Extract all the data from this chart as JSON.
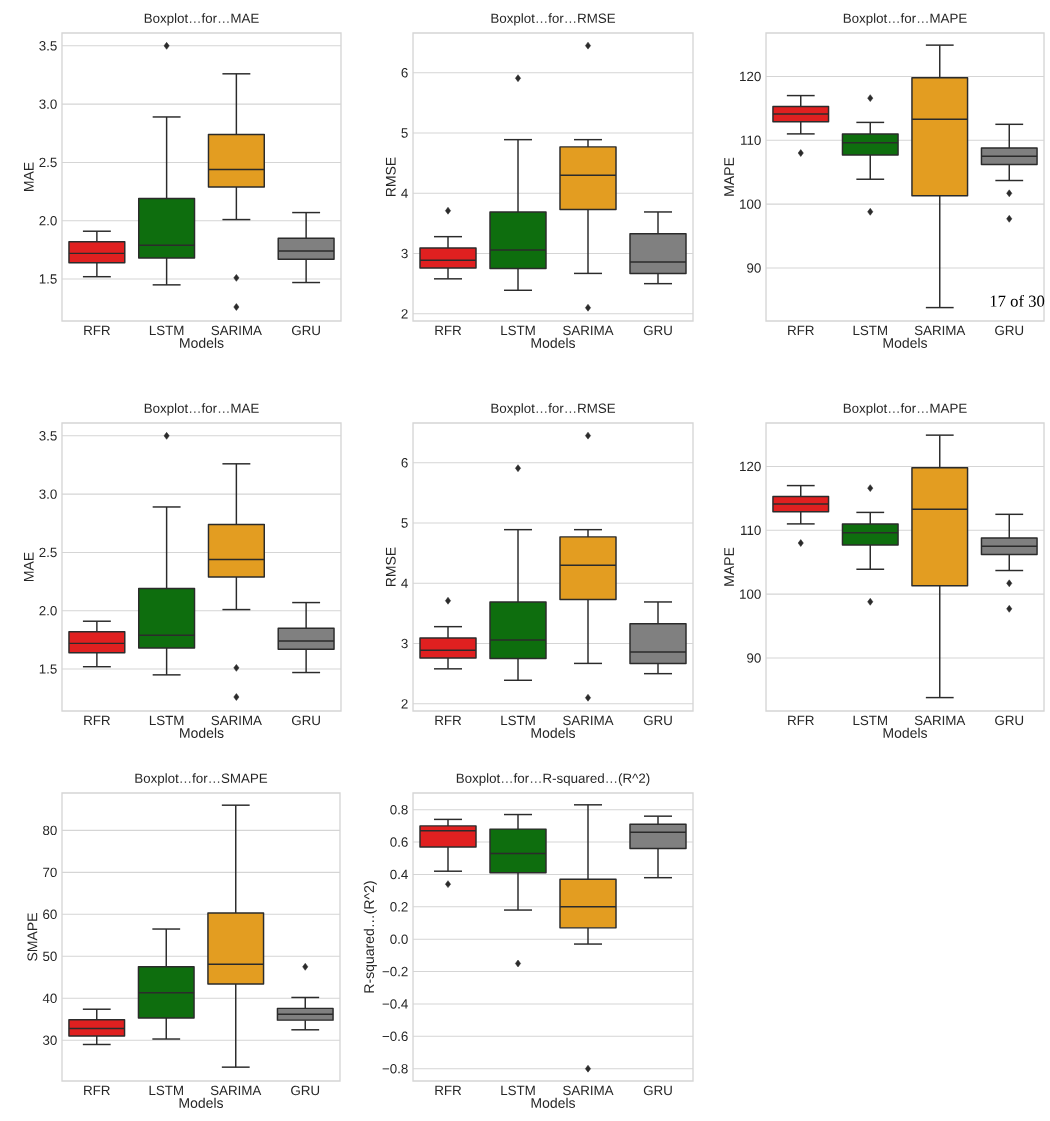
{
  "chart_data": [
    {
      "type": "box",
      "title": "Boxplot…for…MAE",
      "xlabel": "Models",
      "ylabel": "MAE",
      "categories": [
        "RFR",
        "LSTM",
        "SARIMA",
        "GRU"
      ],
      "colors": [
        "#e02020",
        "#0e6e0e",
        "#e39d21",
        "#808080"
      ],
      "grid": "y",
      "ylim": [
        1.14,
        3.61
      ],
      "yticks": [
        {
          "value": 1.5,
          "label": "1.5"
        },
        {
          "value": 2.0,
          "label": "2.0"
        },
        {
          "value": 2.5,
          "label": "2.5"
        },
        {
          "value": 3.0,
          "label": "3.0"
        },
        {
          "value": 3.5,
          "label": "3.5"
        }
      ],
      "boxes": [
        {
          "low": 1.52,
          "q1": 1.64,
          "median": 1.72,
          "q3": 1.82,
          "high": 1.91
        },
        {
          "low": 1.45,
          "q1": 1.68,
          "median": 1.79,
          "q3": 2.19,
          "high": 2.89,
          "outliers": [
            3.5
          ]
        },
        {
          "low": 2.01,
          "q1": 2.29,
          "median": 2.44,
          "q3": 2.74,
          "high": 3.26,
          "outliers": [
            1.51,
            1.26
          ]
        },
        {
          "low": 1.47,
          "q1": 1.67,
          "median": 1.74,
          "q3": 1.85,
          "high": 2.07
        }
      ]
    },
    {
      "type": "box",
      "title": "Boxplot…for…RMSE",
      "xlabel": "Models",
      "ylabel": "RMSE",
      "categories": [
        "RFR",
        "LSTM",
        "SARIMA",
        "GRU"
      ],
      "colors": [
        "#e02020",
        "#0e6e0e",
        "#e39d21",
        "#808080"
      ],
      "grid": "y",
      "ylim": [
        1.88,
        6.66
      ],
      "yticks": [
        2,
        3,
        4,
        5,
        6
      ],
      "boxes": [
        {
          "low": 2.58,
          "q1": 2.76,
          "median": 2.89,
          "q3": 3.09,
          "high": 3.28,
          "outliers": [
            3.71
          ]
        },
        {
          "low": 2.39,
          "q1": 2.75,
          "median": 3.06,
          "q3": 3.69,
          "high": 4.89,
          "outliers": [
            5.91
          ]
        },
        {
          "low": 2.67,
          "q1": 3.73,
          "median": 4.3,
          "q3": 4.77,
          "high": 4.89,
          "outliers": [
            6.45,
            2.1
          ]
        },
        {
          "low": 2.5,
          "q1": 2.67,
          "median": 2.86,
          "q3": 3.33,
          "high": 3.69
        }
      ]
    },
    {
      "type": "box",
      "title": "Boxplot…for…MAPE",
      "xlabel": "Models",
      "ylabel": "MAPE",
      "categories": [
        "RFR",
        "LSTM",
        "SARIMA",
        "GRU"
      ],
      "colors": [
        "#e02020",
        "#0e6e0e",
        "#e39d21",
        "#808080"
      ],
      "grid": "y",
      "ylim": [
        81.7,
        126.8
      ],
      "yticks": [
        90,
        100,
        110,
        120
      ],
      "annotations": [
        "17 of 30"
      ],
      "boxes": [
        {
          "low": 111.0,
          "q1": 112.9,
          "median": 114.1,
          "q3": 115.3,
          "high": 117.0,
          "outliers": [
            108.0
          ]
        },
        {
          "low": 103.9,
          "q1": 107.7,
          "median": 109.6,
          "q3": 111.0,
          "high": 112.8,
          "outliers": [
            116.6,
            98.8
          ]
        },
        {
          "low": 83.8,
          "q1": 101.3,
          "median": 113.3,
          "q3": 119.8,
          "high": 124.9
        },
        {
          "low": 103.7,
          "q1": 106.2,
          "median": 107.5,
          "q3": 108.8,
          "high": 112.5,
          "outliers": [
            101.7,
            97.7
          ]
        }
      ]
    },
    {
      "type": "box",
      "title": "Boxplot…for…MAE",
      "xlabel": "Models",
      "ylabel": "MAE",
      "categories": [
        "RFR",
        "LSTM",
        "SARIMA",
        "GRU"
      ],
      "colors": [
        "#e02020",
        "#0e6e0e",
        "#e39d21",
        "#808080"
      ],
      "grid": "y",
      "ylim": [
        1.14,
        3.61
      ],
      "yticks": [
        {
          "value": 1.5,
          "label": "1.5"
        },
        {
          "value": 2.0,
          "label": "2.0"
        },
        {
          "value": 2.5,
          "label": "2.5"
        },
        {
          "value": 3.0,
          "label": "3.0"
        },
        {
          "value": 3.5,
          "label": "3.5"
        }
      ],
      "boxes": [
        {
          "low": 1.52,
          "q1": 1.64,
          "median": 1.72,
          "q3": 1.82,
          "high": 1.91
        },
        {
          "low": 1.45,
          "q1": 1.68,
          "median": 1.79,
          "q3": 2.19,
          "high": 2.89,
          "outliers": [
            3.5
          ]
        },
        {
          "low": 2.01,
          "q1": 2.29,
          "median": 2.44,
          "q3": 2.74,
          "high": 3.26,
          "outliers": [
            1.51,
            1.26
          ]
        },
        {
          "low": 1.47,
          "q1": 1.67,
          "median": 1.74,
          "q3": 1.85,
          "high": 2.07
        }
      ]
    },
    {
      "type": "box",
      "title": "Boxplot…for…RMSE",
      "xlabel": "Models",
      "ylabel": "RMSE",
      "categories": [
        "RFR",
        "LSTM",
        "SARIMA",
        "GRU"
      ],
      "colors": [
        "#e02020",
        "#0e6e0e",
        "#e39d21",
        "#808080"
      ],
      "grid": "y",
      "ylim": [
        1.88,
        6.66
      ],
      "yticks": [
        2,
        3,
        4,
        5,
        6
      ],
      "boxes": [
        {
          "low": 2.58,
          "q1": 2.76,
          "median": 2.89,
          "q3": 3.09,
          "high": 3.28,
          "outliers": [
            3.71
          ]
        },
        {
          "low": 2.39,
          "q1": 2.75,
          "median": 3.06,
          "q3": 3.69,
          "high": 4.89,
          "outliers": [
            5.91
          ]
        },
        {
          "low": 2.67,
          "q1": 3.73,
          "median": 4.3,
          "q3": 4.77,
          "high": 4.89,
          "outliers": [
            6.45,
            2.1
          ]
        },
        {
          "low": 2.5,
          "q1": 2.67,
          "median": 2.86,
          "q3": 3.33,
          "high": 3.69
        }
      ]
    },
    {
      "type": "box",
      "title": "Boxplot…for…MAPE",
      "xlabel": "Models",
      "ylabel": "MAPE",
      "categories": [
        "RFR",
        "LSTM",
        "SARIMA",
        "GRU"
      ],
      "colors": [
        "#e02020",
        "#0e6e0e",
        "#e39d21",
        "#808080"
      ],
      "grid": "y",
      "ylim": [
        81.7,
        126.8
      ],
      "yticks": [
        90,
        100,
        110,
        120
      ],
      "boxes": [
        {
          "low": 111.0,
          "q1": 112.9,
          "median": 114.1,
          "q3": 115.3,
          "high": 117.0,
          "outliers": [
            108.0
          ]
        },
        {
          "low": 103.9,
          "q1": 107.7,
          "median": 109.6,
          "q3": 111.0,
          "high": 112.8,
          "outliers": [
            116.6,
            98.8
          ]
        },
        {
          "low": 83.8,
          "q1": 101.3,
          "median": 113.3,
          "q3": 119.8,
          "high": 124.9
        },
        {
          "low": 103.7,
          "q1": 106.2,
          "median": 107.5,
          "q3": 108.8,
          "high": 112.5,
          "outliers": [
            101.7,
            97.7
          ]
        }
      ]
    },
    {
      "type": "box",
      "title": "Boxplot…for…SMAPE",
      "xlabel": "Models",
      "ylabel": "SMAPE",
      "categories": [
        "RFR",
        "LSTM",
        "SARIMA",
        "GRU"
      ],
      "colors": [
        "#e02020",
        "#0e6e0e",
        "#e39d21",
        "#808080"
      ],
      "grid": "y",
      "ylim": [
        20.3,
        88.9
      ],
      "yticks": [
        30,
        40,
        50,
        60,
        70,
        80
      ],
      "boxes": [
        {
          "low": 29.0,
          "q1": 31.0,
          "median": 32.8,
          "q3": 34.9,
          "high": 37.4
        },
        {
          "low": 30.3,
          "q1": 35.3,
          "median": 41.3,
          "q3": 47.5,
          "high": 56.5
        },
        {
          "low": 23.6,
          "q1": 43.4,
          "median": 48.1,
          "q3": 60.3,
          "high": 86.0
        },
        {
          "low": 32.5,
          "q1": 34.8,
          "median": 36.2,
          "q3": 37.6,
          "high": 40.2,
          "outliers": [
            47.5
          ]
        }
      ]
    },
    {
      "type": "box",
      "title": "Boxplot…for…R-squared…(R^2)",
      "xlabel": "Models",
      "ylabel": "R-squared…(R^2)",
      "categories": [
        "RFR",
        "LSTM",
        "SARIMA",
        "GRU"
      ],
      "colors": [
        "#e02020",
        "#0e6e0e",
        "#e39d21",
        "#808080"
      ],
      "grid": "y",
      "ylim": [
        -0.876,
        0.903
      ],
      "yticks": [
        {
          "value": -0.8,
          "label": "−0.8"
        },
        {
          "value": -0.6,
          "label": "−0.6"
        },
        {
          "value": -0.4,
          "label": "−0.4"
        },
        {
          "value": -0.2,
          "label": "−0.2"
        },
        {
          "value": 0.0,
          "label": "0.0"
        },
        {
          "value": 0.2,
          "label": "0.2"
        },
        {
          "value": 0.4,
          "label": "0.4"
        },
        {
          "value": 0.6,
          "label": "0.6"
        },
        {
          "value": 0.8,
          "label": "0.8"
        }
      ],
      "boxes": [
        {
          "low": 0.42,
          "q1": 0.57,
          "median": 0.67,
          "q3": 0.7,
          "high": 0.74,
          "outliers": [
            0.34
          ]
        },
        {
          "low": 0.18,
          "q1": 0.41,
          "median": 0.53,
          "q3": 0.68,
          "high": 0.77,
          "outliers": [
            -0.15
          ]
        },
        {
          "low": -0.03,
          "q1": 0.07,
          "median": 0.2,
          "q3": 0.37,
          "high": 0.83,
          "outliers": [
            -0.8
          ]
        },
        {
          "low": 0.38,
          "q1": 0.56,
          "median": 0.66,
          "q3": 0.71,
          "high": 0.76
        }
      ]
    }
  ]
}
